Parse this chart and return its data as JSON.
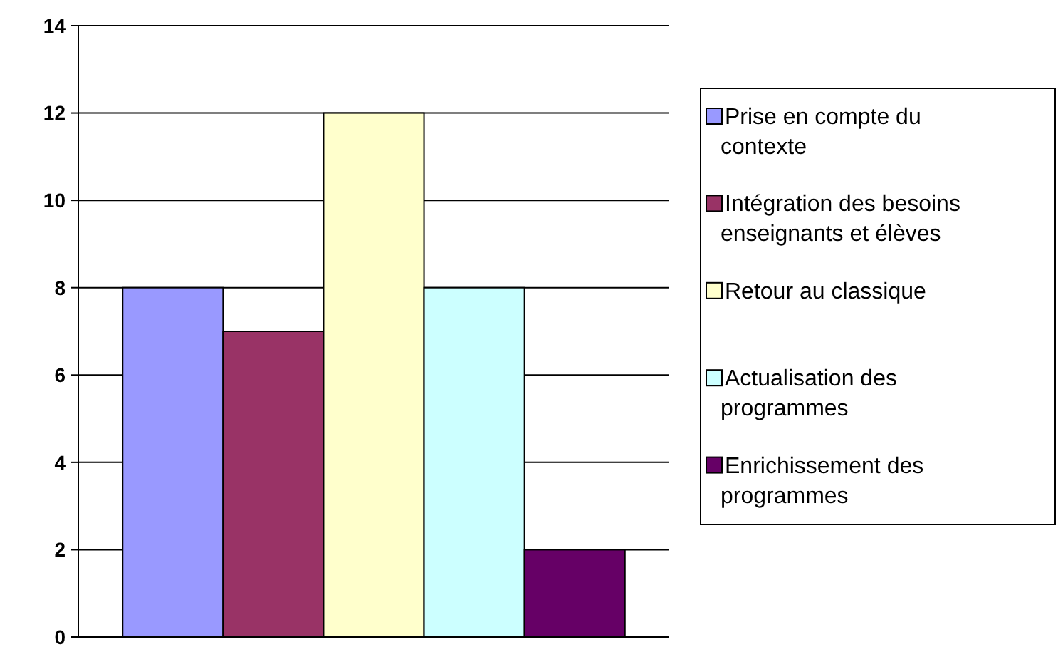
{
  "chart_data": {
    "type": "bar",
    "categories": [
      null
    ],
    "series": [
      {
        "name": "Prise en compte du contexte",
        "color": "#9999ff",
        "values": [
          8
        ]
      },
      {
        "name": "Intégration des besoins enseignants et élèves",
        "color": "#993366",
        "values": [
          7
        ]
      },
      {
        "name": "Retour au classique",
        "color": "#ffffcc",
        "values": [
          12
        ]
      },
      {
        "name": "Actualisation des programmes",
        "color": "#ccffff",
        "values": [
          8
        ]
      },
      {
        "name": "Enrichissement des programmes",
        "color": "#660066",
        "values": [
          2
        ]
      }
    ],
    "ylim": [
      0,
      14
    ],
    "yticks": [
      0,
      2,
      4,
      6,
      8,
      10,
      12,
      14
    ],
    "grid": "y",
    "legend": "right"
  }
}
